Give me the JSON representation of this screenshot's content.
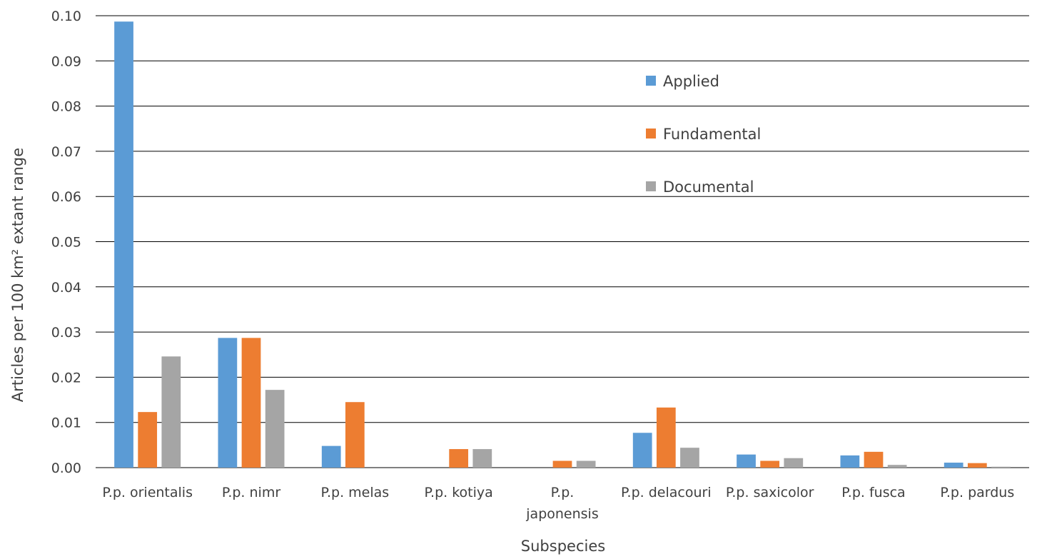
{
  "colors": {
    "applied": "#5b9bd5",
    "fundamental": "#ed7d31",
    "documental": "#a5a5a5",
    "gridline": "#000000",
    "text": "#404040"
  },
  "chart_data": {
    "type": "bar",
    "title": "",
    "xlabel": "Subspecies",
    "ylabel": "Articles per 100 km² extant range",
    "ylim": [
      0,
      0.1
    ],
    "y_ticks": [
      "0.00",
      "0.01",
      "0.02",
      "0.03",
      "0.04",
      "0.05",
      "0.06",
      "0.07",
      "0.08",
      "0.09",
      "0.10"
    ],
    "grid": true,
    "legend_position": "top-right",
    "categories": [
      [
        "P.p. orientalis"
      ],
      [
        "P.p. nimr"
      ],
      [
        "P.p. melas"
      ],
      [
        "P.p. kotiya"
      ],
      [
        "P.p.",
        "japonensis"
      ],
      [
        "P.p. delacouri"
      ],
      [
        "P.p. saxicolor"
      ],
      [
        "P.p. fusca"
      ],
      [
        "P.p. pardus"
      ]
    ],
    "series": [
      {
        "name": "Applied",
        "color": "#5b9bd5",
        "values": [
          0.0987,
          0.0287,
          0.0048,
          0.0,
          0.0,
          0.0077,
          0.0029,
          0.0027,
          0.0011
        ]
      },
      {
        "name": "Fundamental",
        "color": "#ed7d31",
        "values": [
          0.0123,
          0.0287,
          0.0145,
          0.0041,
          0.0015,
          0.0133,
          0.0015,
          0.0035,
          0.001
        ]
      },
      {
        "name": "Documental",
        "color": "#a5a5a5",
        "values": [
          0.0246,
          0.0172,
          0.0,
          0.0041,
          0.0015,
          0.0044,
          0.0021,
          0.0006,
          0.0002
        ]
      }
    ]
  }
}
